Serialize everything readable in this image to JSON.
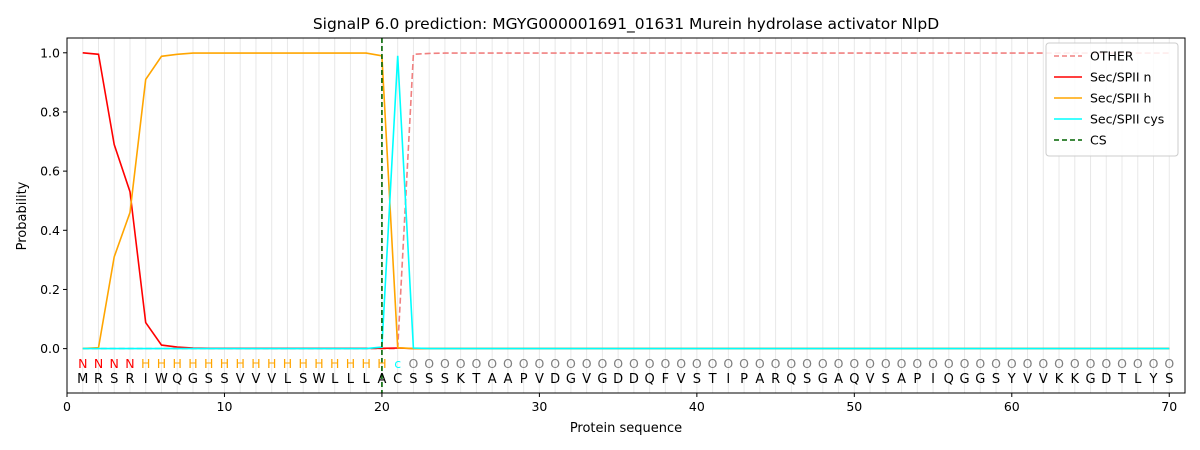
{
  "chart_data": {
    "type": "line",
    "title": "SignalP 6.0 prediction: MGYG000001691_01631 Murein hydrolase activator NlpD",
    "xlabel": "Protein sequence",
    "ylabel": "Probability",
    "xlim": [
      0,
      71
    ],
    "ylim": [
      -0.15,
      1.05
    ],
    "xticks": [
      0,
      10,
      20,
      30,
      40,
      50,
      60,
      70
    ],
    "yticks": [
      0.0,
      0.2,
      0.4,
      0.6,
      0.8,
      1.0
    ],
    "grid": "vertical lines at each residue",
    "legend_position": "top-right",
    "sequence": [
      "M",
      "R",
      "S",
      "R",
      "I",
      "W",
      "Q",
      "G",
      "S",
      "S",
      "V",
      "V",
      "V",
      "L",
      "S",
      "W",
      "L",
      "L",
      "L",
      "A",
      "C",
      "S",
      "S",
      "S",
      "K",
      "T",
      "A",
      "A",
      "P",
      "V",
      "D",
      "G",
      "V",
      "G",
      "D",
      "D",
      "Q",
      "F",
      "V",
      "S",
      "T",
      "I",
      "P",
      "A",
      "R",
      "Q",
      "S",
      "G",
      "A",
      "Q",
      "V",
      "S",
      "A",
      "P",
      "I",
      "Q",
      "G",
      "G",
      "S",
      "Y",
      "V",
      "V",
      "K",
      "K",
      "G",
      "D",
      "T",
      "L",
      "Y",
      "S"
    ],
    "labels": [
      "N",
      "N",
      "N",
      "N",
      "H",
      "H",
      "H",
      "H",
      "H",
      "H",
      "H",
      "H",
      "H",
      "H",
      "H",
      "H",
      "H",
      "H",
      "H",
      "H",
      "c",
      "O",
      "O",
      "O",
      "O",
      "O",
      "O",
      "O",
      "O",
      "O",
      "O",
      "O",
      "O",
      "O",
      "O",
      "O",
      "O",
      "O",
      "O",
      "O",
      "O",
      "O",
      "O",
      "O",
      "O",
      "O",
      "O",
      "O",
      "O",
      "O",
      "O",
      "O",
      "O",
      "O",
      "O",
      "O",
      "O",
      "O",
      "O",
      "O",
      "O",
      "O",
      "O",
      "O",
      "O",
      "O",
      "O",
      "O",
      "O",
      "O"
    ],
    "label_colors": {
      "N": "#ff0000",
      "H": "#ffa500",
      "c": "#00ffff",
      "O": "#808080"
    },
    "cleavage_site": 20,
    "series": [
      {
        "name": "OTHER",
        "color": "#f08080",
        "dash": true,
        "x": [
          1,
          2,
          3,
          4,
          5,
          6,
          7,
          8,
          9,
          10,
          11,
          12,
          13,
          14,
          15,
          16,
          17,
          18,
          19,
          20,
          21,
          22,
          23,
          24,
          25,
          26,
          27,
          28,
          29,
          30,
          31,
          32,
          33,
          34,
          35,
          36,
          37,
          38,
          39,
          40,
          41,
          42,
          43,
          44,
          45,
          46,
          47,
          48,
          49,
          50,
          51,
          52,
          53,
          54,
          55,
          56,
          57,
          58,
          59,
          60,
          61,
          62,
          63,
          64,
          65,
          66,
          67,
          68,
          69,
          70
        ],
        "values": [
          0,
          0,
          0,
          0,
          0,
          0,
          0,
          0,
          0,
          0,
          0,
          0,
          0,
          0,
          0,
          0,
          0,
          0,
          0,
          0,
          0,
          0.995,
          0.998,
          0.999,
          0.999,
          0.999,
          0.999,
          0.999,
          0.999,
          0.999,
          0.999,
          0.999,
          0.999,
          0.999,
          0.999,
          0.999,
          0.999,
          0.999,
          0.999,
          0.999,
          0.999,
          0.999,
          0.999,
          0.999,
          0.999,
          0.999,
          0.999,
          0.999,
          0.999,
          0.999,
          0.999,
          0.999,
          0.999,
          0.999,
          0.999,
          0.999,
          0.999,
          0.999,
          0.999,
          0.999,
          0.999,
          0.999,
          0.999,
          0.999,
          0.999,
          0.999,
          0.999,
          0.999,
          0.999,
          0.999
        ]
      },
      {
        "name": "Sec/SPII n",
        "color": "#ff0000",
        "dash": false,
        "x": [
          1,
          2,
          3,
          4,
          5,
          6,
          7,
          8,
          9,
          10,
          11,
          12,
          13,
          14,
          15,
          16,
          17,
          18,
          19,
          20,
          21,
          22,
          23,
          24,
          25,
          26,
          27,
          28,
          29,
          30,
          31,
          32,
          33,
          34,
          35,
          36,
          37,
          38,
          39,
          40,
          41,
          42,
          43,
          44,
          45,
          46,
          47,
          48,
          49,
          50,
          51,
          52,
          53,
          54,
          55,
          56,
          57,
          58,
          59,
          60,
          61,
          62,
          63,
          64,
          65,
          66,
          67,
          68,
          69,
          70
        ],
        "values": [
          1.0,
          0.995,
          0.69,
          0.53,
          0.088,
          0.012,
          0.005,
          0.002,
          0.001,
          0.001,
          0.001,
          0.001,
          0.001,
          0.001,
          0.001,
          0.001,
          0.001,
          0.001,
          0.001,
          0.001,
          0.002,
          0,
          0,
          0,
          0,
          0,
          0,
          0,
          0,
          0,
          0,
          0,
          0,
          0,
          0,
          0,
          0,
          0,
          0,
          0,
          0,
          0,
          0,
          0,
          0,
          0,
          0,
          0,
          0,
          0,
          0,
          0,
          0,
          0,
          0,
          0,
          0,
          0,
          0,
          0,
          0,
          0,
          0,
          0,
          0,
          0,
          0,
          0,
          0,
          0
        ]
      },
      {
        "name": "Sec/SPII h",
        "color": "#ffa500",
        "dash": false,
        "x": [
          1,
          2,
          3,
          4,
          5,
          6,
          7,
          8,
          9,
          10,
          11,
          12,
          13,
          14,
          15,
          16,
          17,
          18,
          19,
          20,
          21,
          22,
          23,
          24,
          25,
          26,
          27,
          28,
          29,
          30,
          31,
          32,
          33,
          34,
          35,
          36,
          37,
          38,
          39,
          40,
          41,
          42,
          43,
          44,
          45,
          46,
          47,
          48,
          49,
          50,
          51,
          52,
          53,
          54,
          55,
          56,
          57,
          58,
          59,
          60,
          61,
          62,
          63,
          64,
          65,
          66,
          67,
          68,
          69,
          70
        ],
        "values": [
          0,
          0.003,
          0.31,
          0.46,
          0.91,
          0.988,
          0.995,
          0.999,
          0.999,
          0.999,
          0.999,
          0.999,
          0.999,
          0.999,
          0.999,
          0.999,
          0.999,
          0.999,
          0.999,
          0.99,
          0.003,
          0,
          0,
          0,
          0,
          0,
          0,
          0,
          0,
          0,
          0,
          0,
          0,
          0,
          0,
          0,
          0,
          0,
          0,
          0,
          0,
          0,
          0,
          0,
          0,
          0,
          0,
          0,
          0,
          0,
          0,
          0,
          0,
          0,
          0,
          0,
          0,
          0,
          0,
          0,
          0,
          0,
          0,
          0,
          0,
          0,
          0,
          0,
          0,
          0
        ]
      },
      {
        "name": "Sec/SPII cys",
        "color": "#00ffff",
        "dash": false,
        "x": [
          1,
          2,
          3,
          4,
          5,
          6,
          7,
          8,
          9,
          10,
          11,
          12,
          13,
          14,
          15,
          16,
          17,
          18,
          19,
          20,
          21,
          22,
          23,
          24,
          25,
          26,
          27,
          28,
          29,
          30,
          31,
          32,
          33,
          34,
          35,
          36,
          37,
          38,
          39,
          40,
          41,
          42,
          43,
          44,
          45,
          46,
          47,
          48,
          49,
          50,
          51,
          52,
          53,
          54,
          55,
          56,
          57,
          58,
          59,
          60,
          61,
          62,
          63,
          64,
          65,
          66,
          67,
          68,
          69,
          70
        ],
        "values": [
          0,
          0,
          0,
          0,
          0,
          0,
          0,
          0,
          0,
          0,
          0,
          0,
          0,
          0,
          0,
          0,
          0,
          0,
          0,
          0.005,
          0.99,
          0.002,
          0,
          0,
          0,
          0,
          0,
          0,
          0,
          0,
          0,
          0,
          0,
          0,
          0,
          0,
          0,
          0,
          0,
          0,
          0,
          0,
          0,
          0,
          0,
          0,
          0,
          0,
          0,
          0,
          0,
          0,
          0,
          0,
          0,
          0,
          0,
          0,
          0,
          0,
          0,
          0,
          0,
          0,
          0,
          0,
          0,
          0,
          0,
          0
        ]
      },
      {
        "name": "CS",
        "color": "#006400",
        "dash": true,
        "vertical_at": 20
      }
    ]
  }
}
